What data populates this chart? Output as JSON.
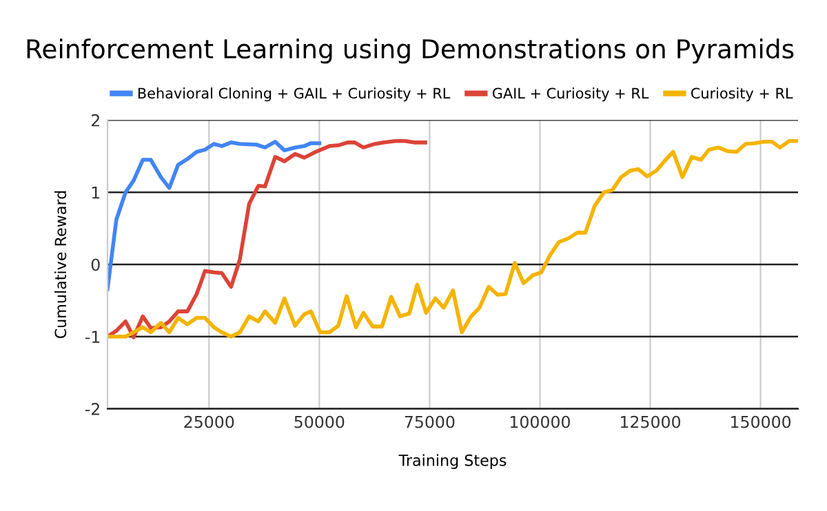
{
  "chart_data": {
    "type": "line",
    "title": "Reinforcement Learning using Demonstrations on Pyramids",
    "xlabel": "Training Steps",
    "ylabel": "Cumulative Reward",
    "xlim": [
      2000,
      158500
    ],
    "ylim": [
      -2,
      2
    ],
    "xticks": [
      25000,
      50000,
      75000,
      100000,
      125000,
      150000
    ],
    "yticks": [
      -2,
      -1,
      0,
      1,
      2
    ],
    "grid": true,
    "legend": "top",
    "marker": "none",
    "line_style": "solid",
    "series": [
      {
        "name": "Behavioral Cloning + GAIL + Curiosity + RL",
        "color": "#4285f4",
        "x": [
          2000,
          4000,
          6100,
          7900,
          10000,
          11800,
          14100,
          16000,
          18000,
          20100,
          22200,
          24100,
          26100,
          27900,
          30000,
          32000,
          35700,
          37700,
          40000,
          42100,
          44500,
          46600,
          48100,
          50000
        ],
        "values": [
          -0.34,
          0.62,
          1.0,
          1.16,
          1.45,
          1.45,
          1.21,
          1.06,
          1.38,
          1.46,
          1.56,
          1.59,
          1.67,
          1.64,
          1.69,
          1.67,
          1.66,
          1.62,
          1.7,
          1.58,
          1.62,
          1.64,
          1.68,
          1.68
        ]
      },
      {
        "name": "GAIL + Curiosity + RL",
        "color": "#db4437",
        "x": [
          2000,
          4000,
          6100,
          7900,
          10000,
          11800,
          14100,
          16000,
          18000,
          20100,
          22200,
          24100,
          26100,
          27900,
          30000,
          32000,
          34100,
          36200,
          37700,
          40000,
          42100,
          44500,
          46600,
          49200,
          52300,
          54300,
          56400,
          58000,
          60000,
          62600,
          64700,
          67300,
          69400,
          71500,
          74000
        ],
        "values": [
          -1.0,
          -0.92,
          -0.79,
          -1.01,
          -0.72,
          -0.88,
          -0.87,
          -0.79,
          -0.65,
          -0.65,
          -0.41,
          -0.09,
          -0.11,
          -0.12,
          -0.31,
          0.07,
          0.84,
          1.09,
          1.08,
          1.49,
          1.43,
          1.53,
          1.48,
          1.56,
          1.64,
          1.65,
          1.69,
          1.69,
          1.62,
          1.67,
          1.69,
          1.71,
          1.71,
          1.69,
          1.69
        ]
      },
      {
        "name": "Curiosity + RL",
        "color": "#f4b400",
        "x": [
          2000,
          4000,
          6100,
          7900,
          10000,
          11800,
          14100,
          16000,
          18000,
          20100,
          22200,
          24100,
          26100,
          27900,
          30000,
          32000,
          34100,
          36200,
          37700,
          40000,
          42100,
          44500,
          46600,
          48100,
          50200,
          52300,
          54300,
          56200,
          58300,
          60000,
          62100,
          64200,
          66300,
          68300,
          70400,
          72200,
          74200,
          76300,
          78200,
          80300,
          82300,
          84400,
          86300,
          88400,
          90400,
          92200,
          94300,
          96300,
          98400,
          100300,
          102200,
          104300,
          106400,
          108500,
          110300,
          112400,
          114500,
          116400,
          118400,
          120500,
          122300,
          124300,
          126400,
          128500,
          130200,
          132300,
          134400,
          136500,
          138300,
          140400,
          142500,
          144600,
          146600,
          148700,
          150800,
          152600,
          154400,
          156500,
          158500
        ],
        "values": [
          -1.0,
          -1.0,
          -1.0,
          -0.94,
          -0.87,
          -0.94,
          -0.81,
          -0.94,
          -0.74,
          -0.83,
          -0.74,
          -0.74,
          -0.87,
          -0.94,
          -1.0,
          -0.94,
          -0.72,
          -0.79,
          -0.65,
          -0.81,
          -0.47,
          -0.85,
          -0.69,
          -0.65,
          -0.94,
          -0.94,
          -0.85,
          -0.44,
          -0.87,
          -0.67,
          -0.86,
          -0.86,
          -0.45,
          -0.72,
          -0.68,
          -0.28,
          -0.67,
          -0.47,
          -0.6,
          -0.36,
          -0.94,
          -0.72,
          -0.6,
          -0.31,
          -0.42,
          -0.41,
          0.02,
          -0.26,
          -0.15,
          -0.11,
          0.12,
          0.31,
          0.36,
          0.44,
          0.44,
          0.81,
          1.0,
          1.03,
          1.21,
          1.3,
          1.32,
          1.22,
          1.3,
          1.45,
          1.56,
          1.21,
          1.49,
          1.45,
          1.59,
          1.62,
          1.57,
          1.56,
          1.67,
          1.68,
          1.7,
          1.7,
          1.62,
          1.71,
          1.71
        ]
      }
    ]
  }
}
